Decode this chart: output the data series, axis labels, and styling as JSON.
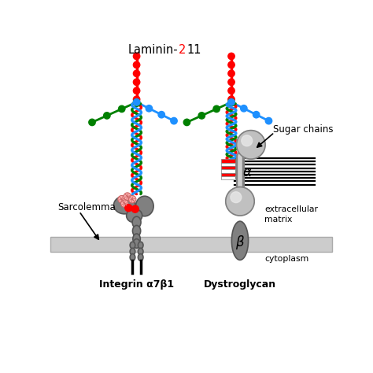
{
  "bg_color": "#ffffff",
  "gray": "#808080",
  "dark_gray": "#555555",
  "light_gray": "#c0c0c0",
  "red": "#ff0000",
  "green": "#008000",
  "blue": "#1e90ff",
  "label_integrin": "Integrin α7β1",
  "label_dystroglycan": "Dystroglycan",
  "label_sarcolemma": "Sarcolemma",
  "label_sugar": "Sugar chains",
  "label_extracellular": "extracellular\nmatrix",
  "label_cytoplasm": "cytoplasm"
}
